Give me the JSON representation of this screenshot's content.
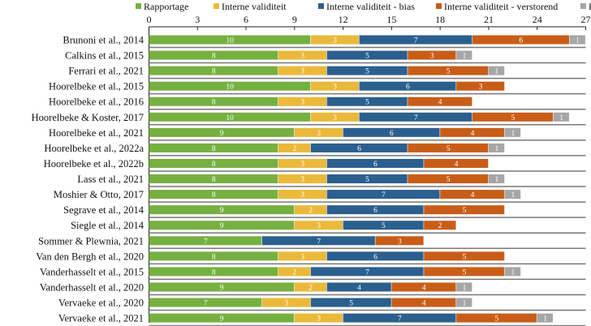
{
  "chart_data": {
    "type": "bar",
    "orientation": "horizontal",
    "stacked": true,
    "xlim": [
      0,
      27
    ],
    "xticks": [
      0,
      3,
      6,
      9,
      12,
      15,
      18,
      21,
      24,
      27
    ],
    "legend_position": "top",
    "categories": [
      "Brunoni et al., 2014",
      "Calkins et al., 2015",
      "Ferrari et al., 2021",
      "Hoorelbeke et al., 2015",
      "Hoorelbeke et al., 2016",
      "Hoorelbeke & Koster, 2017",
      "Hoorelbeke et al., 2021",
      "Hoorelbeke et al., 2022a",
      "Hoorelbeke et al., 2022b",
      "Lass et al., 2021",
      "Moshier & Otto, 2017",
      "Segrave et al., 2014",
      "Siegle et al., 2014",
      "Sommer & Plewnia, 2021",
      "Van den Bergh et al., 2020",
      "Vanderhasselt et al., 2015",
      "Vanderhasselt et al., 2020",
      "Vervaeke et al., 2020",
      "Vervaeke et al., 2021"
    ],
    "series": [
      {
        "name": "Rapportage",
        "color": "#76b041",
        "values": [
          10,
          8,
          8,
          10,
          8,
          10,
          9,
          8,
          8,
          8,
          8,
          9,
          9,
          7,
          8,
          8,
          9,
          7,
          9
        ]
      },
      {
        "name": "Interne validiteit",
        "color": "#ebb93a",
        "values": [
          3,
          3,
          3,
          3,
          3,
          3,
          3,
          2,
          3,
          3,
          3,
          2,
          3,
          0,
          3,
          2,
          2,
          3,
          3
        ]
      },
      {
        "name": "Interne validiteit - bias",
        "color": "#2b5f8e",
        "values": [
          7,
          5,
          5,
          6,
          5,
          7,
          6,
          6,
          6,
          5,
          7,
          6,
          5,
          7,
          6,
          7,
          4,
          5,
          7
        ]
      },
      {
        "name": "Interne validiteit - verstorend",
        "color": "#c85d18",
        "values": [
          6,
          3,
          5,
          3,
          4,
          5,
          4,
          5,
          4,
          5,
          4,
          5,
          2,
          3,
          5,
          5,
          4,
          4,
          5
        ]
      },
      {
        "name": "Power",
        "color": "#a6a6a6",
        "values": [
          1,
          1,
          1,
          0,
          0,
          1,
          1,
          1,
          0,
          1,
          1,
          0,
          0,
          0,
          0,
          1,
          1,
          1,
          1
        ]
      }
    ]
  }
}
